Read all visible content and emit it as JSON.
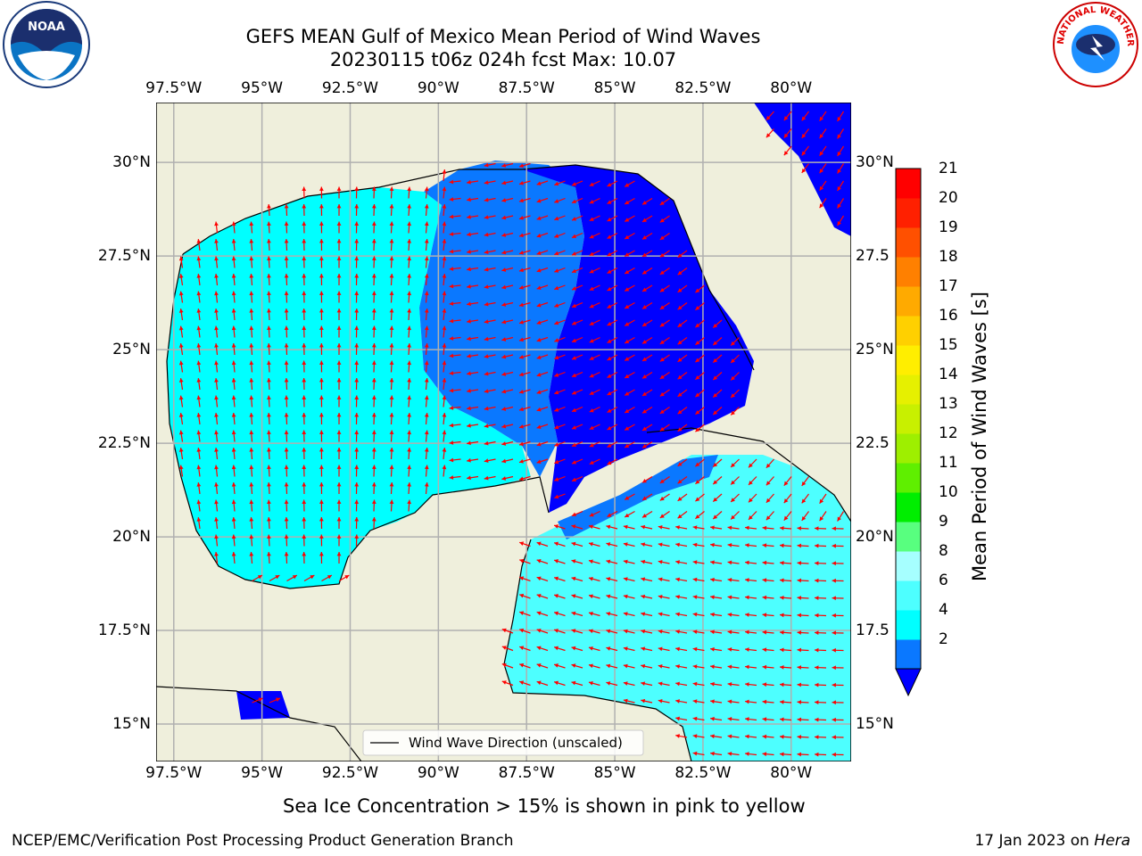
{
  "title_line1": "GEFS MEAN Gulf of Mexico Mean Period of Wind Waves",
  "title_line2": "20230115 t06z 024h fcst   Max: 10.07",
  "lon_ticks": [
    "97.5°W",
    "95°W",
    "92.5°W",
    "90°W",
    "87.5°W",
    "85°W",
    "82.5°W",
    "80°W"
  ],
  "lon_values": [
    -97.5,
    -95,
    -92.5,
    -90,
    -87.5,
    -85,
    -82.5,
    -80
  ],
  "lat_ticks_left": [
    "30°N",
    "27.5°N",
    "25°N",
    "22.5°N",
    "20°N",
    "17.5°N",
    "15°N"
  ],
  "lat_ticks_right": [
    "30°N",
    "27.5",
    "25°N",
    "22.5",
    "20°N",
    "17.5",
    "15°N"
  ],
  "lat_values": [
    30,
    27.5,
    25,
    22.5,
    20,
    17.5,
    15
  ],
  "map_extent": {
    "lon": [
      -98,
      -78.3
    ],
    "lat": [
      14,
      31.6
    ]
  },
  "legend_label": "Wind Wave Direction (unscaled)",
  "colorbar": {
    "label": "Mean Period of Wind Waves [s]",
    "ticks": [
      "21",
      "20",
      "19",
      "18",
      "17",
      "16",
      "15",
      "14",
      "13",
      "12",
      "11",
      "10",
      "9",
      "8",
      "6",
      "4",
      "2"
    ],
    "levels": [
      2,
      4,
      6,
      8,
      9,
      10,
      11,
      12,
      13,
      14,
      15,
      16,
      17,
      18,
      19,
      20,
      21
    ],
    "colors": [
      "#0000ff",
      "#0a78ff",
      "#00ffff",
      "#4dffff",
      "#a6ffff",
      "#58ff7f",
      "#00ee00",
      "#5fef00",
      "#9eef00",
      "#c8f000",
      "#e6f000",
      "#ffee00",
      "#ffd000",
      "#ffaa00",
      "#ff8000",
      "#ff5000",
      "#ff2000",
      "#ff0000"
    ]
  },
  "colors": {
    "land": "#efefdc",
    "ocean_dark": "#0000ff",
    "ocean_mid": "#0a78ff",
    "ocean_light": "#00ffff",
    "arrow": "#ff0000",
    "grid": "#b0b0b0"
  },
  "caption": "Sea Ice Concentration > 15% is shown in pink to yellow",
  "footer_left": "NCEP/EMC/Verification Post Processing Product Generation Branch",
  "footer_right_date": "17 Jan 2023 on ",
  "footer_right_host": "Hera",
  "logo_left_text": "NOAA",
  "logo_right_text": "NATIONAL WEATHER SERVICE"
}
